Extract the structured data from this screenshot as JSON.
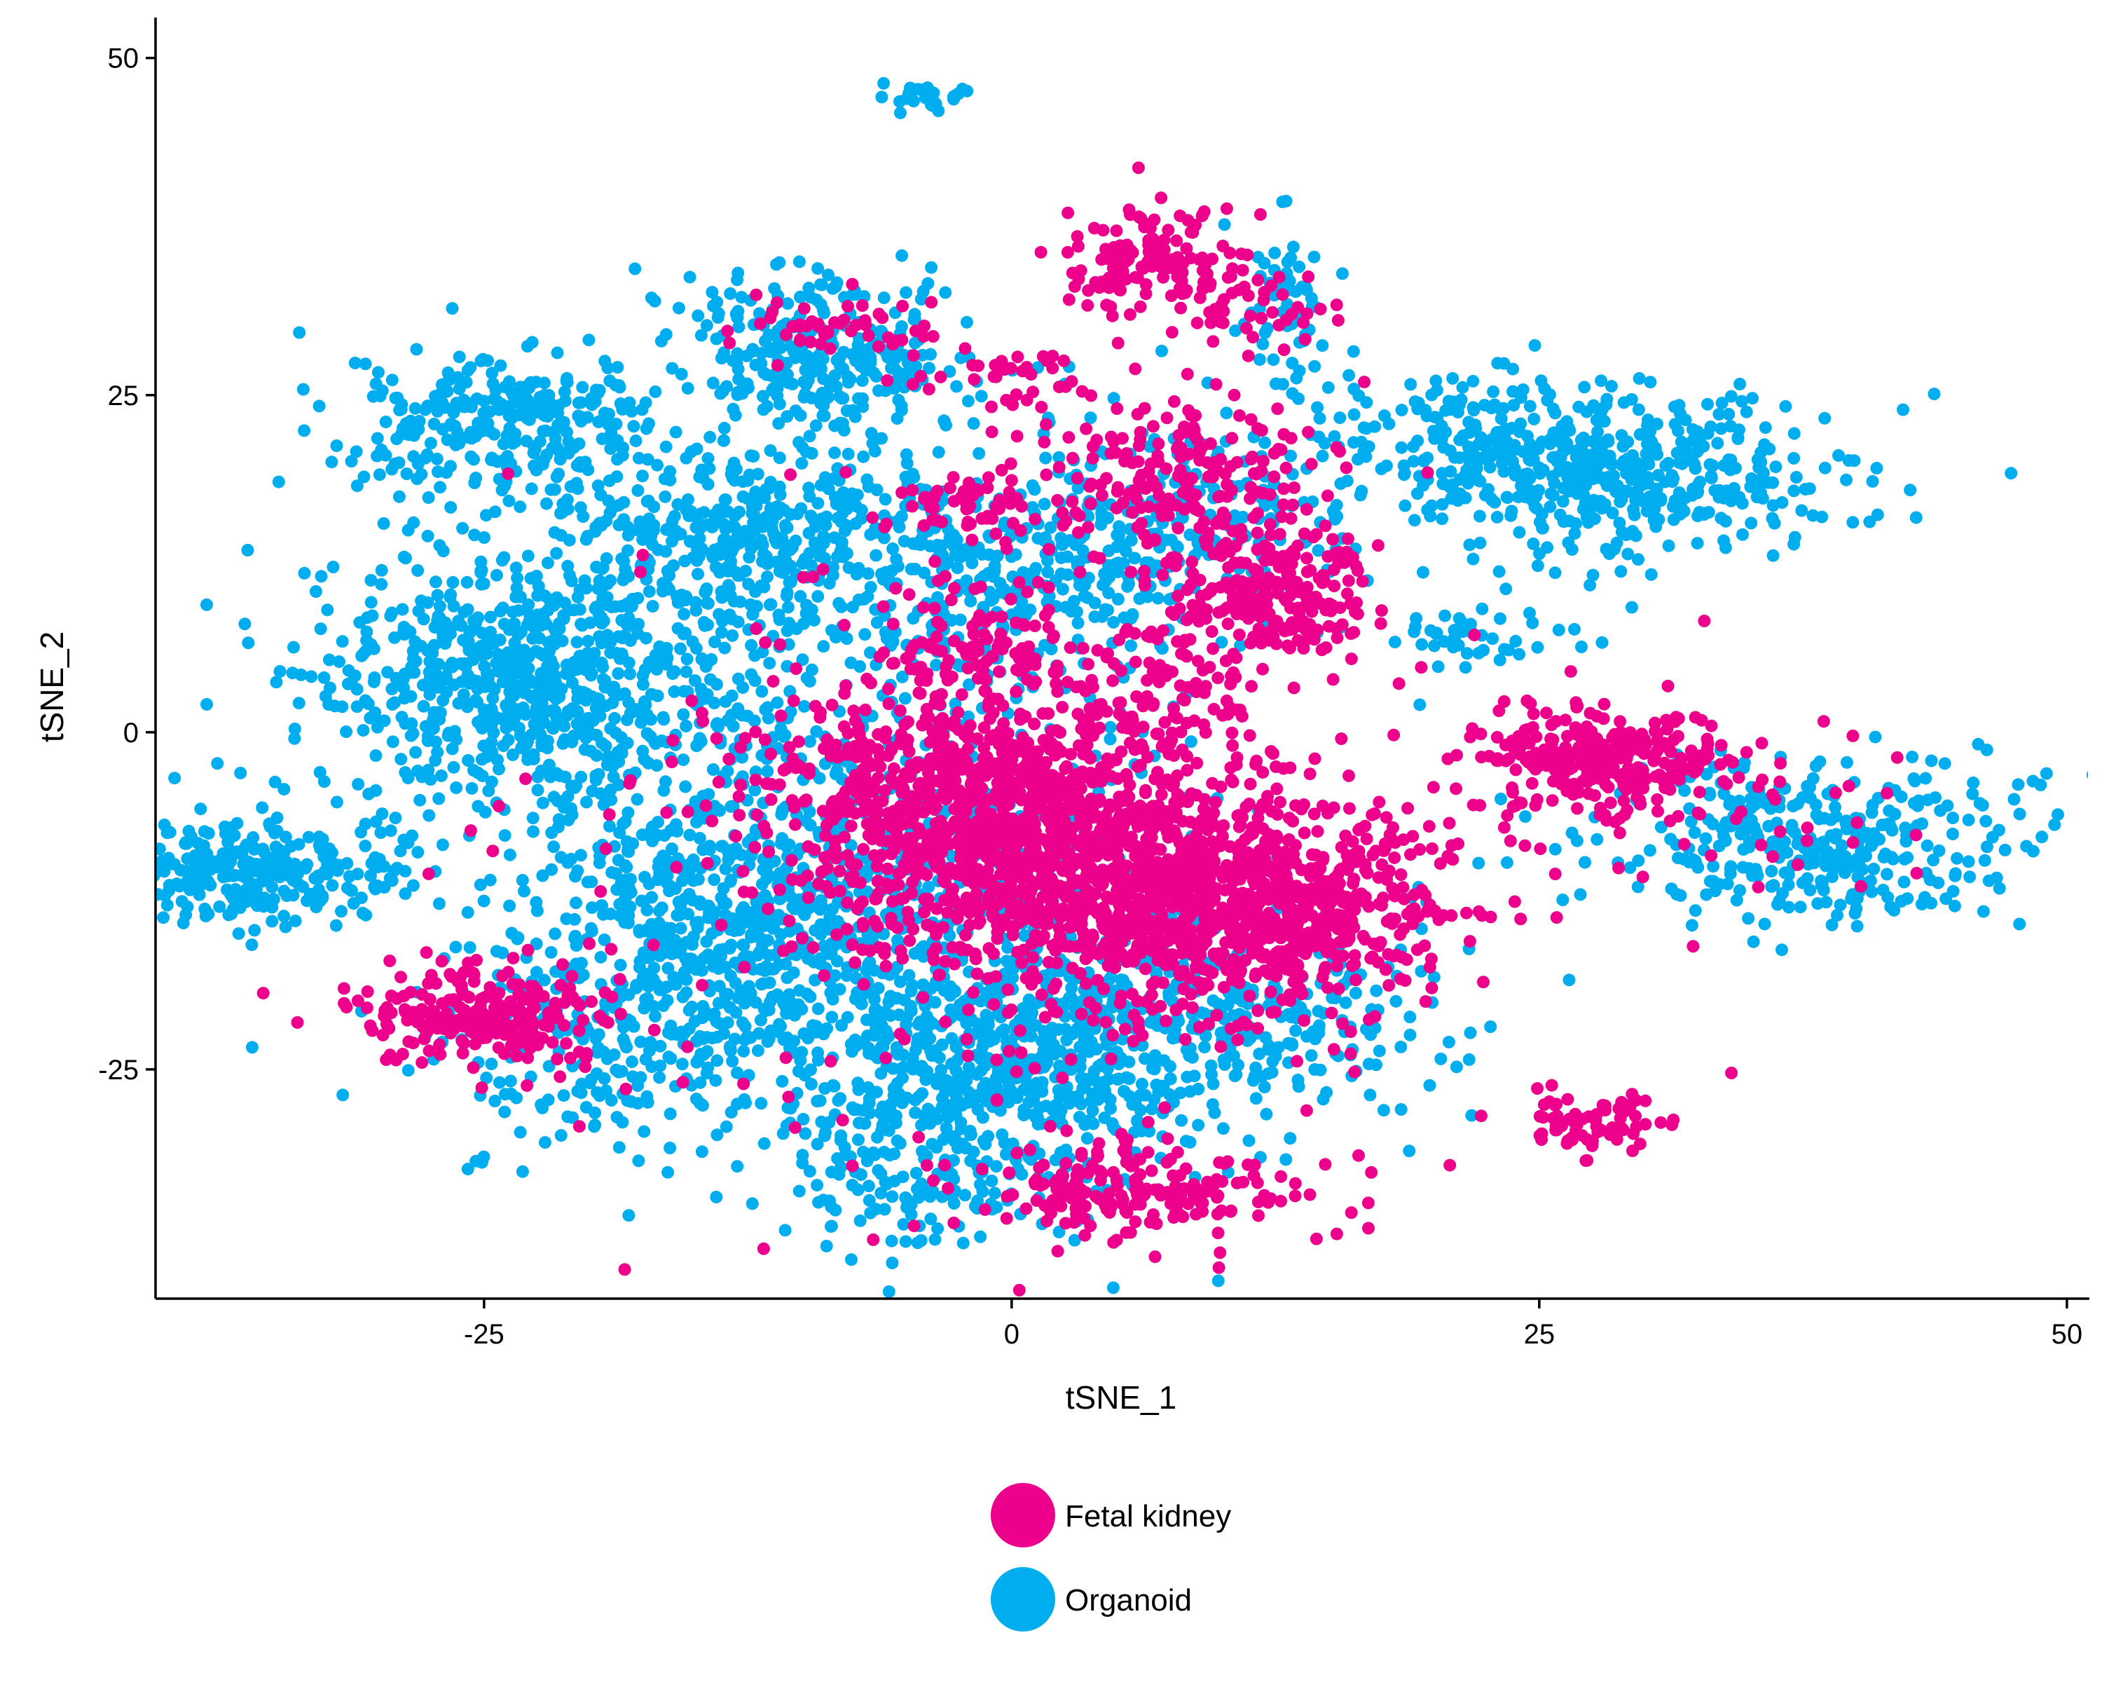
{
  "chart_data": {
    "type": "scatter",
    "title": "",
    "xlabel": "tSNE_1",
    "ylabel": "tSNE_2",
    "xlim": [
      -40.5,
      51
    ],
    "ylim": [
      -42,
      53
    ],
    "xticks": [
      -25,
      0,
      25,
      50
    ],
    "yticks": [
      -25,
      0,
      25,
      50
    ],
    "xtick_labels": [
      "-25",
      "0",
      "25",
      "50"
    ],
    "ytick_labels": [
      "-25",
      "0",
      "25",
      "50"
    ],
    "grid": false,
    "legend_position": "bottom",
    "series": [
      {
        "name": "Fetal kidney",
        "color": "#EC008C",
        "clusters": [
          {
            "cx": -1.5,
            "cy": -6,
            "sx": 5,
            "sy": 4.5,
            "n": 900
          },
          {
            "cx": 7,
            "cy": -12,
            "sx": 6,
            "sy": 4.5,
            "n": 900
          },
          {
            "cx": 13,
            "cy": -13,
            "sx": 3.5,
            "sy": 3.5,
            "n": 350
          },
          {
            "cx": -25,
            "cy": -21,
            "sx": 3,
            "sy": 1.8,
            "n": 230
          },
          {
            "cx": 28,
            "cy": -2,
            "sx": 3,
            "sy": 1.8,
            "n": 280
          },
          {
            "cx": 28,
            "cy": -29,
            "sx": 1.5,
            "sy": 1,
            "n": 70
          },
          {
            "cx": 6,
            "cy": -34,
            "sx": 3.5,
            "sy": 1.8,
            "n": 200
          },
          {
            "cx": 12,
            "cy": 10,
            "sx": 2.5,
            "sy": 2.5,
            "n": 220
          },
          {
            "cx": 8,
            "cy": 19,
            "sx": 3.5,
            "sy": 3,
            "n": 200
          },
          {
            "cx": 7,
            "cy": 35,
            "sx": 2,
            "sy": 1.8,
            "n": 140
          },
          {
            "cx": -1,
            "cy": 6,
            "sx": 2.5,
            "sy": 2.5,
            "n": 120
          },
          {
            "cx": -2,
            "cy": 17,
            "sx": 1.5,
            "sy": 1.2,
            "n": 60
          },
          {
            "cx": 8,
            "cy": 3,
            "sx": 2,
            "sy": 3,
            "n": 100
          },
          {
            "cx": -8,
            "cy": 30,
            "sx": 2.5,
            "sy": 1,
            "n": 50
          },
          {
            "cx": 1,
            "cy": 26,
            "sx": 3,
            "sy": 1.5,
            "n": 40
          },
          {
            "cx": 11,
            "cy": 31,
            "sx": 2,
            "sy": 1.5,
            "n": 40
          },
          {
            "cx": 34,
            "cy": -6,
            "sx": 5,
            "sy": 3,
            "n": 50
          },
          {
            "cx": 0,
            "cy": -10,
            "sx": 14,
            "sy": 13,
            "n": 250
          }
        ]
      },
      {
        "name": "Organoid",
        "color": "#00AEEF",
        "clusters": [
          {
            "cx": -23,
            "cy": 4,
            "sx": 5,
            "sy": 4.5,
            "n": 700
          },
          {
            "cx": -13,
            "cy": -14,
            "sx": 5,
            "sy": 5,
            "n": 600
          },
          {
            "cx": 0,
            "cy": -24,
            "sx": 5,
            "sy": 5,
            "n": 650
          },
          {
            "cx": -36,
            "cy": -10,
            "sx": 3.5,
            "sy": 2,
            "n": 300
          },
          {
            "cx": -24,
            "cy": 23,
            "sx": 4,
            "sy": 2.5,
            "n": 300
          },
          {
            "cx": -13,
            "cy": 14,
            "sx": 4,
            "sy": 3.5,
            "n": 350
          },
          {
            "cx": -9,
            "cy": 28,
            "sx": 3.5,
            "sy": 3.5,
            "n": 300
          },
          {
            "cx": 29,
            "cy": 19,
            "sx": 5,
            "sy": 3,
            "n": 450
          },
          {
            "cx": 21,
            "cy": 22,
            "sx": 4,
            "sy": 2.5,
            "n": 150
          },
          {
            "cx": 38,
            "cy": -8,
            "sx": 5,
            "sy": 3,
            "n": 350
          },
          {
            "cx": -4,
            "cy": 47,
            "sx": 1,
            "sy": 0.6,
            "n": 30
          },
          {
            "cx": 0,
            "cy": 12,
            "sx": 5,
            "sy": 4,
            "n": 300
          },
          {
            "cx": 11,
            "cy": -21,
            "sx": 5,
            "sy": 4,
            "n": 250
          },
          {
            "cx": -18,
            "cy": -24,
            "sx": 5,
            "sy": 4,
            "n": 200
          },
          {
            "cx": 13,
            "cy": 32,
            "sx": 1,
            "sy": 3,
            "n": 60
          },
          {
            "cx": 9,
            "cy": 16,
            "sx": 4,
            "sy": 4,
            "n": 150
          },
          {
            "cx": 22,
            "cy": 7,
            "sx": 2,
            "sy": 1,
            "n": 40
          },
          {
            "cx": -8,
            "cy": -5,
            "sx": 10,
            "sy": 12,
            "n": 700
          },
          {
            "cx": -5,
            "cy": -33,
            "sx": 3,
            "sy": 3,
            "n": 120
          }
        ]
      }
    ]
  }
}
